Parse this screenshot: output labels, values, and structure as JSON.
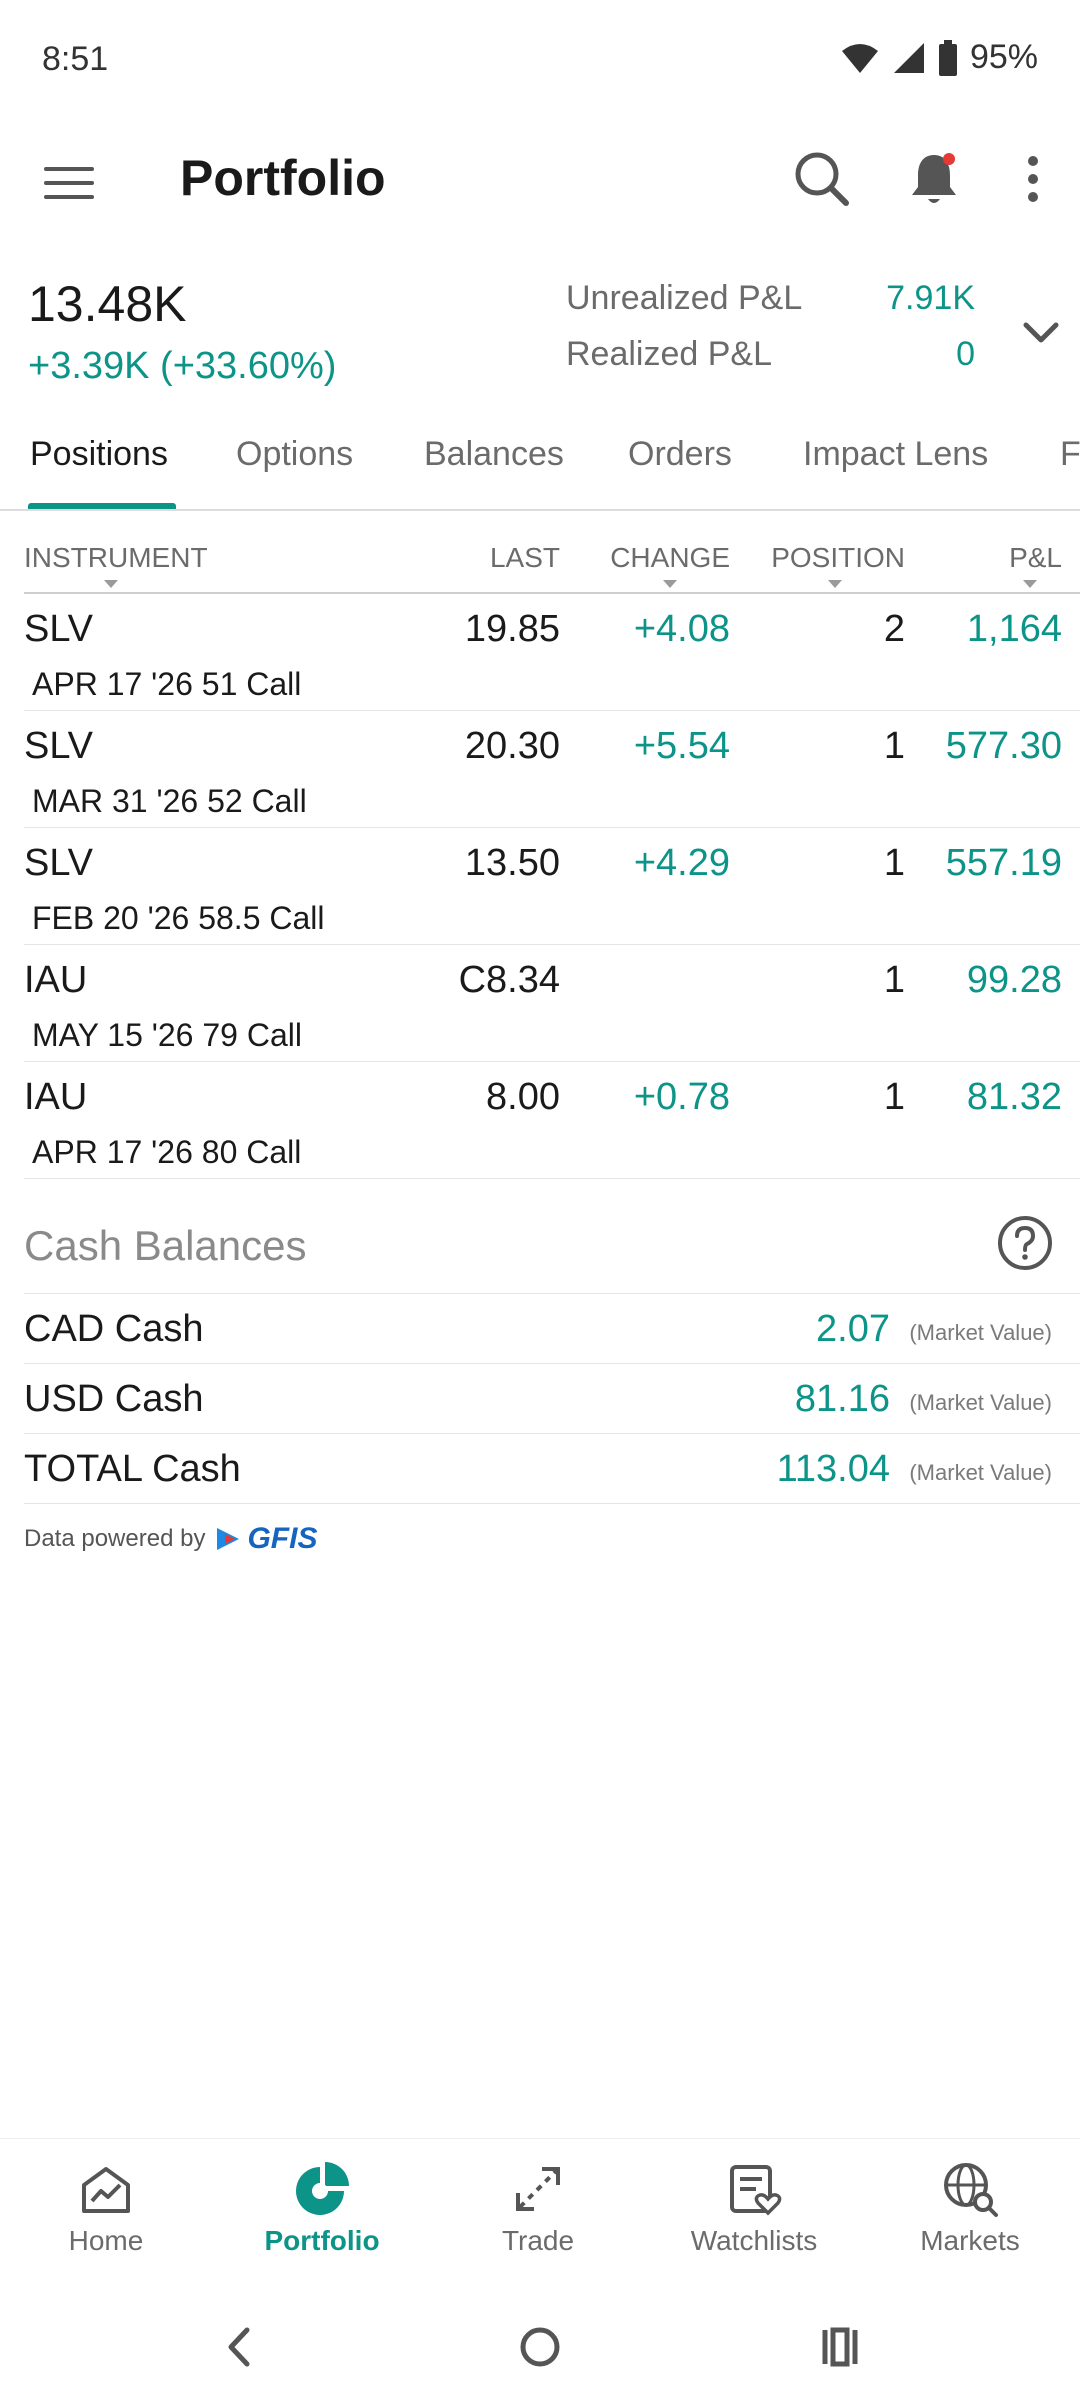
{
  "status_bar": {
    "time": "8:51",
    "battery": "95%"
  },
  "app_bar": {
    "title": "Portfolio"
  },
  "summary": {
    "value": "13.48K",
    "change": "+3.39K (+33.60%)",
    "unrealized_label": "Unrealized P&L",
    "unrealized_value": "7.91K",
    "realized_label": "Realized P&L",
    "realized_value": "0"
  },
  "tabs": [
    {
      "label": "Positions"
    },
    {
      "label": "Options"
    },
    {
      "label": "Balances"
    },
    {
      "label": "Orders"
    },
    {
      "label": "Impact Lens"
    },
    {
      "label": "F"
    }
  ],
  "table": {
    "headers": {
      "instrument": "INSTRUMENT",
      "last": "LAST",
      "change": "CHANGE",
      "position": "POSITION",
      "pnl": "P&L"
    },
    "rows": [
      {
        "symbol": "SLV",
        "description": "APR 17 '26 51 Call",
        "last": "19.85",
        "change": "+4.08",
        "position": "2",
        "pnl": "1,164"
      },
      {
        "symbol": "SLV",
        "description": "MAR 31 '26 52 Call",
        "last": "20.30",
        "change": "+5.54",
        "position": "1",
        "pnl": "577.30"
      },
      {
        "symbol": "SLV",
        "description": "FEB 20 '26 58.5 Call",
        "last": "13.50",
        "change": "+4.29",
        "position": "1",
        "pnl": "557.19"
      },
      {
        "symbol": "IAU",
        "description": "MAY 15 '26 79 Call",
        "last": "C8.34",
        "change": "",
        "position": "1",
        "pnl": "99.28"
      },
      {
        "symbol": "IAU",
        "description": "APR 17 '26 80 Call",
        "last": "8.00",
        "change": "+0.78",
        "position": "1",
        "pnl": "81.32"
      }
    ]
  },
  "cash": {
    "title": "Cash Balances",
    "note": "(Market Value)",
    "rows": [
      {
        "label": "CAD Cash",
        "value": "2.07"
      },
      {
        "label": "USD Cash",
        "value": "81.16"
      },
      {
        "label": "TOTAL Cash",
        "value": "113.04"
      }
    ]
  },
  "powered_by": {
    "text": "Data powered by",
    "logo": "GFIS"
  },
  "bottom_nav": [
    {
      "label": "Home",
      "icon": "home-chart-icon"
    },
    {
      "label": "Portfolio",
      "icon": "pie-chart-icon"
    },
    {
      "label": "Trade",
      "icon": "trade-arrows-icon"
    },
    {
      "label": "Watchlists",
      "icon": "watchlist-icon"
    },
    {
      "label": "Markets",
      "icon": "globe-search-icon"
    }
  ],
  "colors": {
    "accent": "#0d9488",
    "text": "#1a1a1a",
    "muted": "#6b6b6b",
    "notification": "#e53935"
  }
}
